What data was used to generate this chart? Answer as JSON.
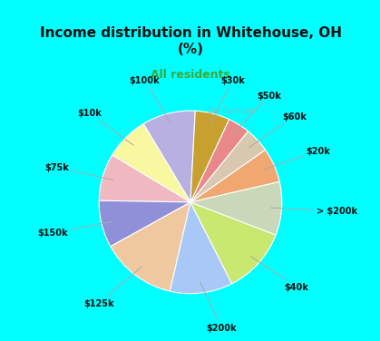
{
  "title": "Income distribution in Whitehouse, OH\n(%)",
  "subtitle": "All residents",
  "labels": [
    "$100k",
    "$10k",
    "$75k",
    "$150k",
    "$125k",
    "$200k",
    "$40k",
    "> $200k",
    "$20k",
    "$60k",
    "$50k",
    "$30k"
  ],
  "values": [
    8.5,
    7.0,
    7.5,
    7.5,
    12.0,
    10.0,
    10.5,
    8.5,
    5.5,
    4.0,
    3.5,
    5.5
  ],
  "colors": [
    "#b8b0e0",
    "#f8f8a0",
    "#f0b8c0",
    "#9090d8",
    "#f0c8a0",
    "#a8c8f8",
    "#c8e870",
    "#c8d8b8",
    "#f0a870",
    "#d8c8b0",
    "#e88888",
    "#c8a030"
  ],
  "startangle": 87,
  "background_top": "#00ffff",
  "background_chart_color1": "#e8f8f0",
  "background_chart_color2": "#c8e8d8",
  "title_color": "#101010",
  "subtitle_color": "#3aaa3a",
  "title_fontsize": 11,
  "subtitle_fontsize": 9,
  "label_fontsize": 7,
  "watermark": "City-Data.com"
}
